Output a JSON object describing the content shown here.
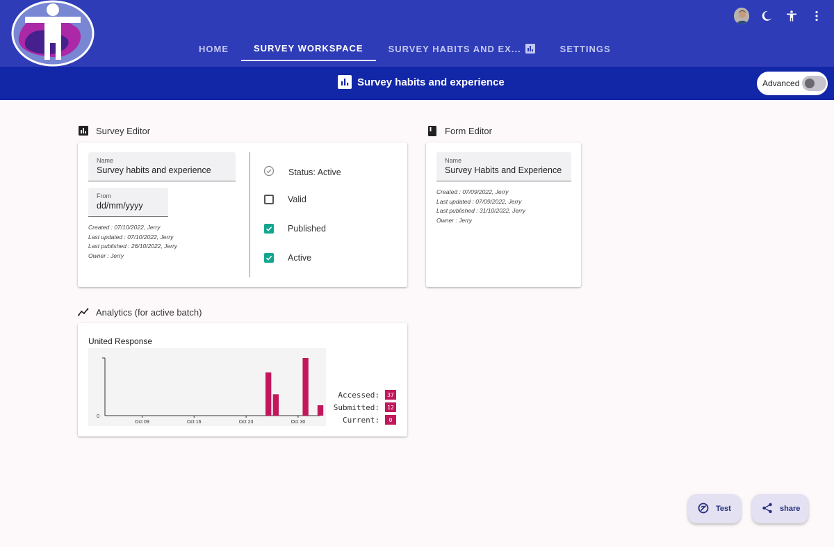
{
  "colors": {
    "appbar": "#2f3cb8",
    "subbar": "#1226a8",
    "checkbox_checked": "#12a690",
    "chart_bar": "#c2185b",
    "stat_badge": "#c2185b"
  },
  "header": {
    "nav_tabs": [
      {
        "label": "HOME",
        "active": false
      },
      {
        "label": "SURVEY WORKSPACE",
        "active": true
      },
      {
        "label": "SURVEY HABITS AND EX...",
        "active": false,
        "icon": "bar-chart-icon"
      },
      {
        "label": "SETTINGS",
        "active": false
      }
    ],
    "icons": [
      "avatar",
      "dark-mode-moon-icon",
      "accessibility-icon",
      "more-vert-icon"
    ]
  },
  "subheader": {
    "title": "Survey habits and experience",
    "advanced_label": "Advanced",
    "advanced_on": false
  },
  "survey_editor": {
    "heading": "Survey Editor",
    "name_label": "Name",
    "name_value": "Survey habits and experience",
    "from_label": "From",
    "from_value": "dd/mm/yyyy",
    "meta": [
      "Created : 07/10/2022, Jerry",
      "Last updated : 07/10/2022, Jerry",
      "Last published : 26/10/2022, Jerry",
      "Owner : Jerry"
    ],
    "status_label": "Status: Active",
    "checkboxes": [
      {
        "label": "Valid",
        "checked": false
      },
      {
        "label": "Published",
        "checked": true
      },
      {
        "label": "Active",
        "checked": true
      }
    ]
  },
  "form_editor": {
    "heading": "Form Editor",
    "name_label": "Name",
    "name_value": "Survey Habits and Experience",
    "meta": [
      "Created : 07/09/2022, Jerry",
      "Last updated : 07/09/2022, Jerry",
      "Last published : 31/10/2022, Jerry",
      "Owner : Jerry"
    ]
  },
  "analytics": {
    "heading": "Analytics (for active batch)",
    "stats": [
      {
        "label": "Accessed:",
        "value": "37"
      },
      {
        "label": "Submitted:",
        "value": "12"
      },
      {
        "label": "Current:",
        "value": "0"
      }
    ]
  },
  "chart_data": {
    "type": "bar",
    "title": "United Response",
    "xlabel": "",
    "ylabel": "",
    "x_ticks": [
      "Oct 09",
      "Oct 16",
      "Oct 23",
      "Oct 30"
    ],
    "y_ticks": [
      "0"
    ],
    "x_range": [
      "2022-10-04",
      "2022-11-02"
    ],
    "ylim": [
      0,
      10
    ],
    "grid": false,
    "series": [
      {
        "points": [
          {
            "x": "2022-10-26",
            "y": 7.5
          },
          {
            "x": "2022-10-27",
            "y": 3.7
          },
          {
            "x": "2022-10-31",
            "y": 10
          },
          {
            "x": "2022-11-02",
            "y": 1.8
          }
        ]
      }
    ]
  },
  "fabs": {
    "test_label": "Test",
    "share_label": "share"
  }
}
